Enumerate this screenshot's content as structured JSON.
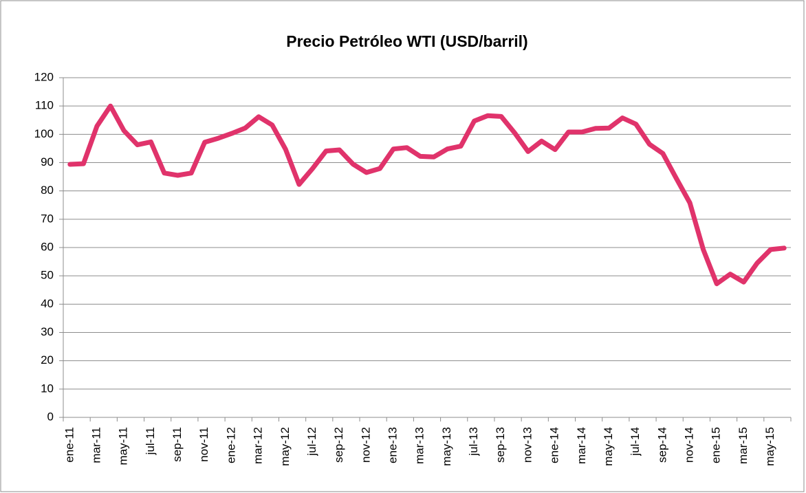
{
  "chart_data": {
    "type": "line",
    "title": "Precio Petróleo WTI (USD/barril)",
    "categories": [
      "ene-11",
      null,
      "mar-11",
      null,
      "may-11",
      null,
      "jul-11",
      null,
      "sep-11",
      null,
      "nov-11",
      null,
      "ene-12",
      null,
      "mar-12",
      null,
      "may-12",
      null,
      "jul-12",
      null,
      "sep-12",
      null,
      "nov-12",
      null,
      "ene-13",
      null,
      "mar-13",
      null,
      "may-13",
      null,
      "jul-13",
      null,
      "sep-13",
      null,
      "nov-13",
      null,
      "ene-14",
      null,
      "mar-14",
      null,
      "may-14",
      null,
      "jul-14",
      null,
      "sep-14",
      null,
      "nov-14",
      null,
      "ene-15",
      null,
      "mar-15",
      null,
      "may-15",
      null
    ],
    "series": [
      {
        "name": "WTI",
        "color": "#e0336b",
        "values": [
          89.4,
          89.6,
          102.9,
          110.0,
          101.3,
          96.3,
          97.3,
          86.3,
          85.5,
          86.3,
          97.2,
          98.6,
          100.3,
          102.2,
          106.2,
          103.3,
          94.7,
          82.3,
          87.9,
          94.1,
          94.5,
          89.5,
          86.5,
          87.9,
          94.8,
          95.3,
          92.2,
          92.0,
          94.8,
          95.8,
          104.7,
          106.6,
          106.3,
          100.5,
          93.9,
          97.6,
          94.6,
          100.8,
          100.8,
          102.1,
          102.2,
          105.8,
          103.6,
          96.5,
          93.2,
          84.4,
          75.8,
          59.3,
          47.2,
          50.6,
          47.8,
          54.5,
          59.3,
          59.8
        ]
      }
    ],
    "ylim": [
      0,
      120
    ],
    "yticks": [
      0,
      10,
      20,
      30,
      40,
      50,
      60,
      70,
      80,
      90,
      100,
      110,
      120
    ],
    "grid": true
  }
}
